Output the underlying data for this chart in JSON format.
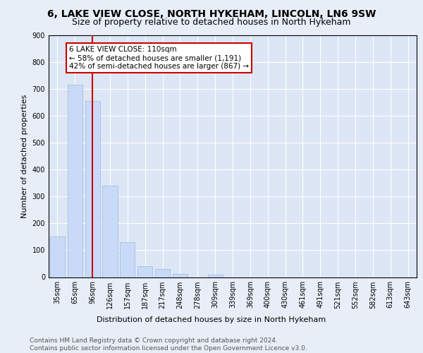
{
  "title": "6, LAKE VIEW CLOSE, NORTH HYKEHAM, LINCOLN, LN6 9SW",
  "subtitle": "Size of property relative to detached houses in North Hykeham",
  "xlabel": "Distribution of detached houses by size in North Hykeham",
  "ylabel": "Number of detached properties",
  "bar_labels": [
    "35sqm",
    "65sqm",
    "96sqm",
    "126sqm",
    "157sqm",
    "187sqm",
    "217sqm",
    "248sqm",
    "278sqm",
    "309sqm",
    "339sqm",
    "369sqm",
    "400sqm",
    "430sqm",
    "461sqm",
    "491sqm",
    "521sqm",
    "552sqm",
    "582sqm",
    "613sqm",
    "643sqm"
  ],
  "bar_values": [
    150,
    715,
    655,
    340,
    130,
    42,
    30,
    12,
    0,
    8,
    0,
    0,
    0,
    0,
    0,
    0,
    0,
    0,
    0,
    0,
    0
  ],
  "bar_color": "#c9daf8",
  "bar_edge_color": "#a4bfe0",
  "vline_x": 2,
  "vline_color": "#cc0000",
  "annotation_line1": "6 LAKE VIEW CLOSE: 110sqm",
  "annotation_line2": "← 58% of detached houses are smaller (1,191)",
  "annotation_line3": "42% of semi-detached houses are larger (867) →",
  "ylim": [
    0,
    900
  ],
  "yticks": [
    0,
    100,
    200,
    300,
    400,
    500,
    600,
    700,
    800,
    900
  ],
  "background_color": "#e8eef8",
  "plot_bg_color": "#dce6f5",
  "grid_color": "#ffffff",
  "title_fontsize": 10,
  "subtitle_fontsize": 9,
  "axis_label_fontsize": 8,
  "tick_fontsize": 7,
  "annotation_fontsize": 7.5,
  "footer_text": "Contains HM Land Registry data © Crown copyright and database right 2024.\nContains public sector information licensed under the Open Government Licence v3.0.",
  "footer_fontsize": 6.5
}
